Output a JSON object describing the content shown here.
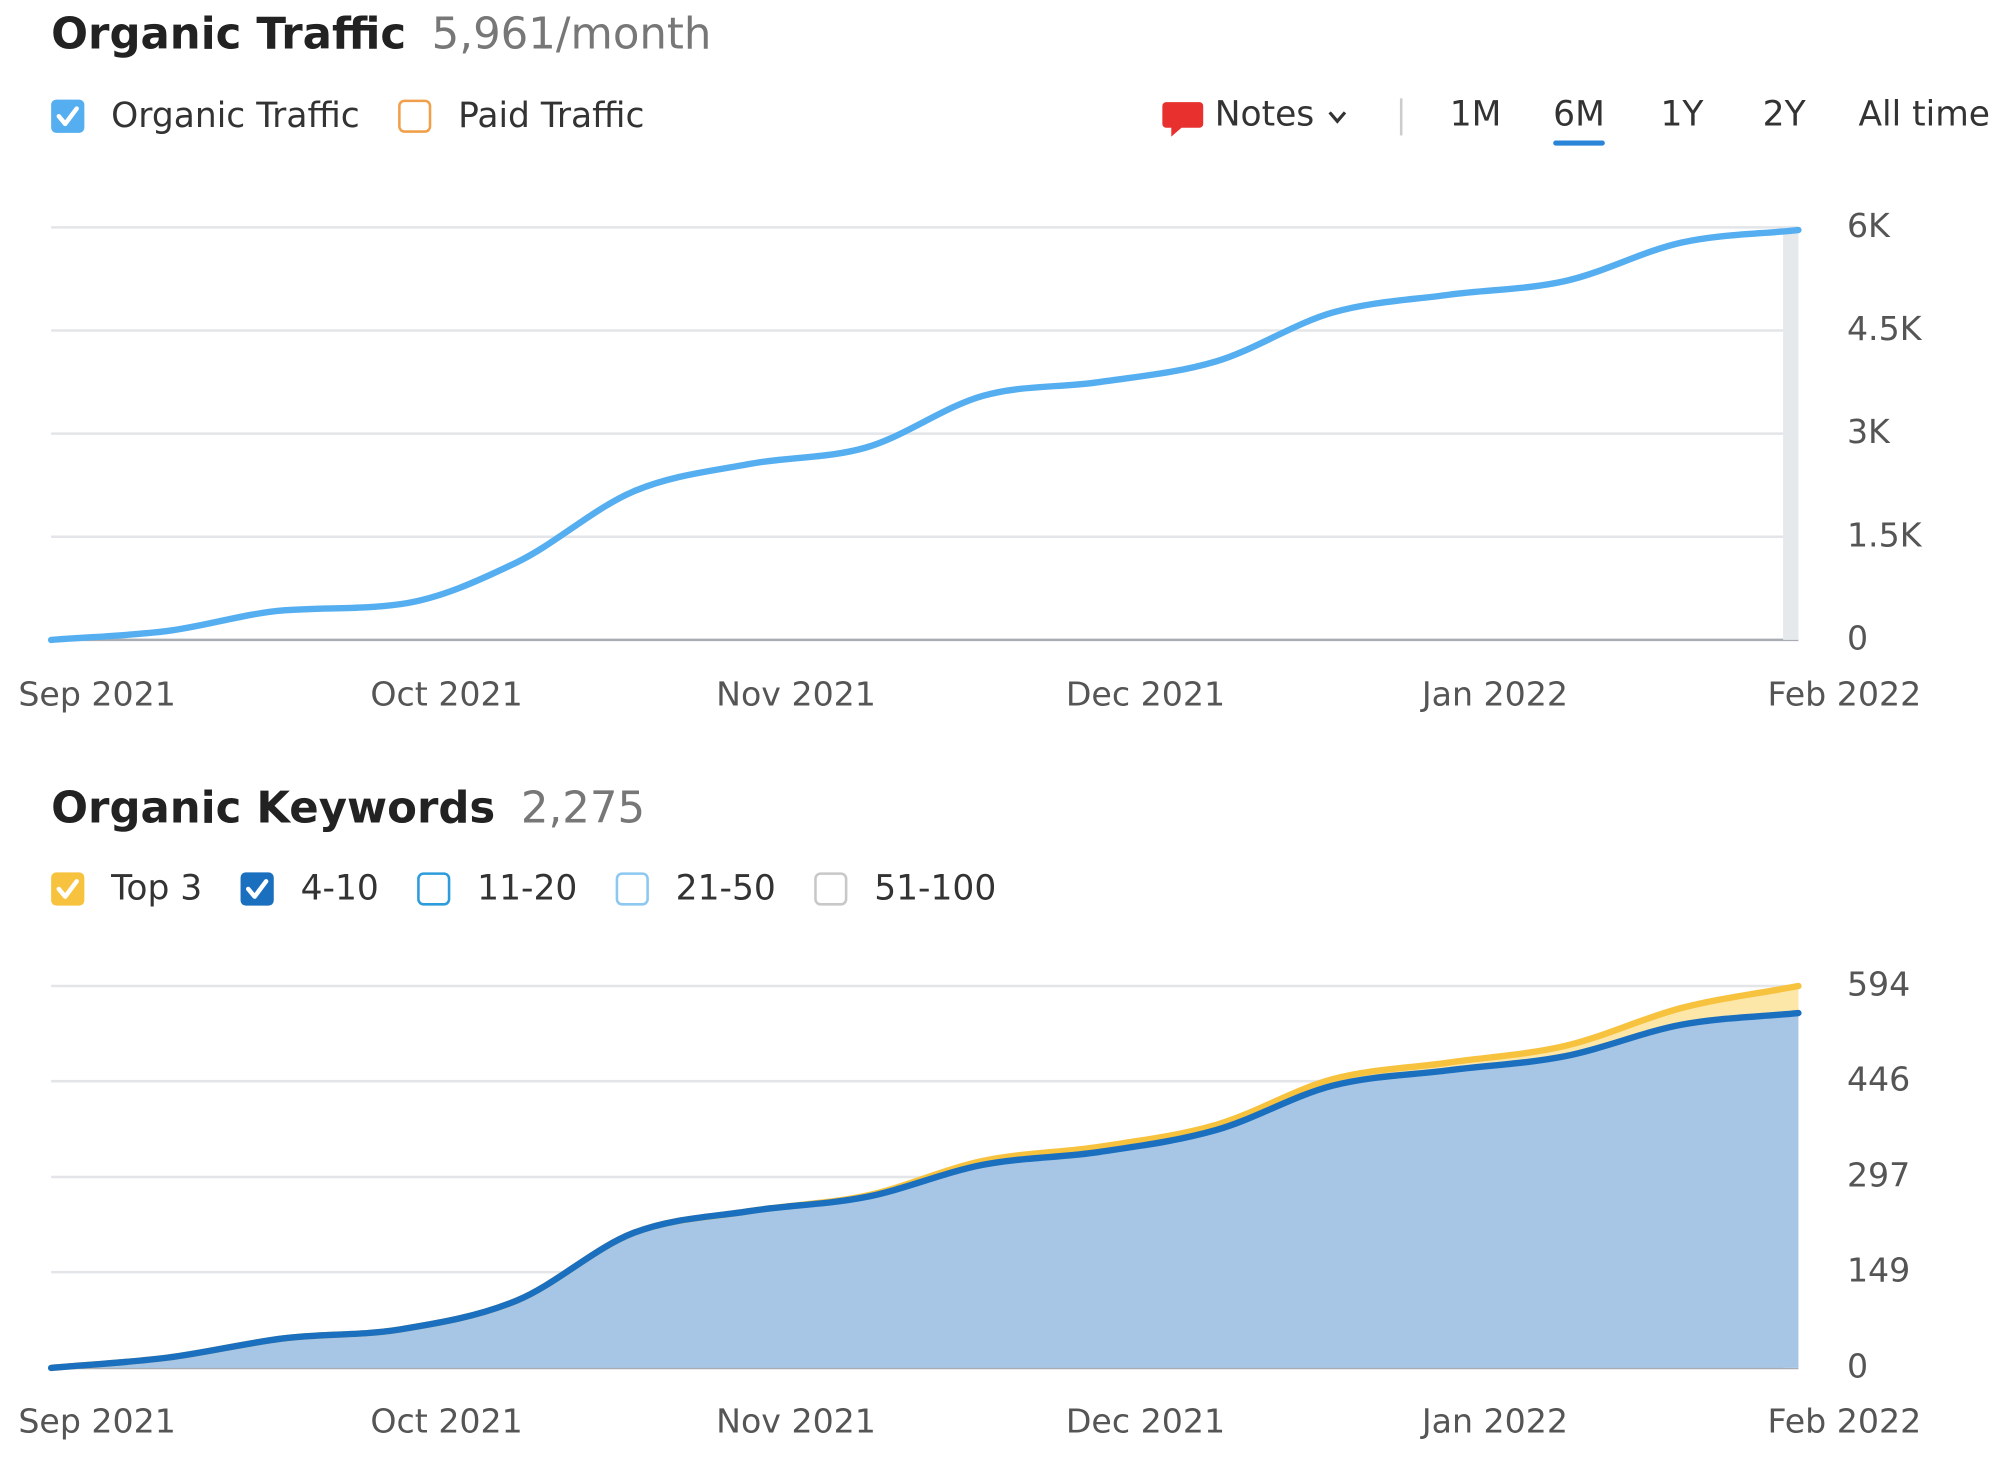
{
  "controls": {
    "notes": "Notes",
    "ranges": [
      "1M",
      "6M",
      "1Y",
      "2Y",
      "All time"
    ],
    "selected_range": 1
  },
  "chart_data": [
    {
      "type": "line",
      "title": "Organic Traffic",
      "subtitle": "5,961/month",
      "categories": [
        "Sep 2021",
        null,
        null,
        "Oct 2021",
        null,
        null,
        "Nov 2021",
        null,
        null,
        "Dec 2021",
        null,
        null,
        "Jan 2022",
        null,
        null,
        "Feb 2022"
      ],
      "series": [
        {
          "name": "Organic Traffic",
          "color": "#55aef0",
          "values": [
            0,
            130,
            430,
            520,
            1130,
            2160,
            2560,
            2800,
            3550,
            3750,
            4050,
            4760,
            5020,
            5220,
            5780,
            5961
          ]
        }
      ],
      "inactive_series": [
        {
          "name": "Paid Traffic",
          "color": "#f0a04b"
        }
      ],
      "ylim": [
        0,
        6000
      ],
      "yticks": [
        0,
        {
          "value": 1500,
          "label": "1.5K"
        },
        {
          "value": 3000,
          "label": "3K"
        },
        {
          "value": 4500,
          "label": "4.5K"
        },
        {
          "value": 6000,
          "label": "6K"
        }
      ],
      "grid": true
    },
    {
      "type": "stacked_area",
      "title": "Organic Keywords",
      "subtitle": "2,275",
      "categories": [
        "Sep 2021",
        null,
        null,
        "Oct 2021",
        null,
        null,
        "Nov 2021",
        null,
        null,
        "Dec 2021",
        null,
        null,
        "Jan 2022",
        null,
        null,
        "Feb 2022"
      ],
      "series": [
        {
          "name": "Top 3",
          "color": "#f7c23e",
          "fill": "#fce6a8",
          "values": [
            0,
            0,
            0,
            0,
            0,
            0,
            0,
            2,
            6,
            8,
            8,
            10,
            12,
            16,
            26,
            42
          ]
        },
        {
          "name": "4-10",
          "color": "#1b6fbf",
          "fill": "#a7c6e6",
          "values": [
            0,
            16,
            46,
            60,
            105,
            210,
            244,
            266,
            316,
            336,
            370,
            439,
            463,
            485,
            534,
            552
          ]
        }
      ],
      "inactive_series": [
        {
          "name": "11-20",
          "color": "#2d9cdb"
        },
        {
          "name": "21-50",
          "color": "#8cc8f0"
        },
        {
          "name": "51-100",
          "color": "#c8c8c8"
        }
      ],
      "ylim": [
        0,
        594
      ],
      "yticks": [
        0,
        149,
        297,
        446,
        594
      ],
      "grid": true
    }
  ]
}
